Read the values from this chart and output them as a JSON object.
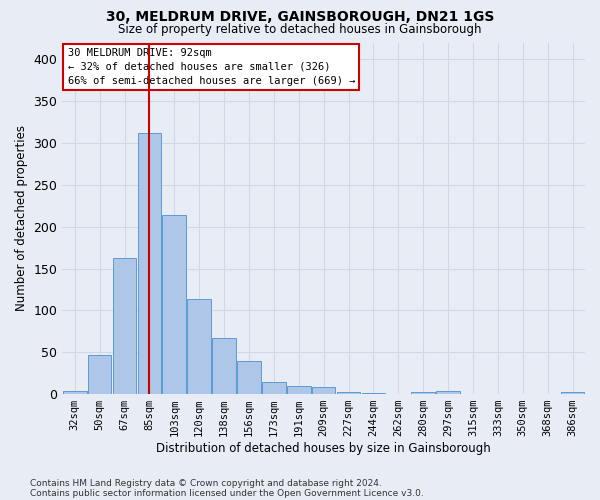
{
  "title": "30, MELDRUM DRIVE, GAINSBOROUGH, DN21 1GS",
  "subtitle": "Size of property relative to detached houses in Gainsborough",
  "xlabel": "Distribution of detached houses by size in Gainsborough",
  "ylabel": "Number of detached properties",
  "categories": [
    "32sqm",
    "50sqm",
    "67sqm",
    "85sqm",
    "103sqm",
    "120sqm",
    "138sqm",
    "156sqm",
    "173sqm",
    "191sqm",
    "209sqm",
    "227sqm",
    "244sqm",
    "262sqm",
    "280sqm",
    "297sqm",
    "315sqm",
    "333sqm",
    "350sqm",
    "368sqm",
    "386sqm"
  ],
  "values": [
    4,
    47,
    163,
    312,
    214,
    114,
    67,
    39,
    15,
    10,
    9,
    3,
    1,
    0,
    3,
    4,
    0,
    0,
    0,
    0,
    3
  ],
  "bar_color": "#aec6e8",
  "bar_edge_color": "#5b9bd5",
  "vline_x_idx": 3,
  "vline_color": "#cc0000",
  "annotation_text": "30 MELDRUM DRIVE: 92sqm\n← 32% of detached houses are smaller (326)\n66% of semi-detached houses are larger (669) →",
  "annotation_box_color": "#ffffff",
  "annotation_box_edge": "#cc0000",
  "grid_color": "#d0d8e8",
  "background_color": "#e8edf5",
  "footer1": "Contains HM Land Registry data © Crown copyright and database right 2024.",
  "footer2": "Contains public sector information licensed under the Open Government Licence v3.0.",
  "ylim": [
    0,
    420
  ],
  "yticks": [
    0,
    50,
    100,
    150,
    200,
    250,
    300,
    350,
    400
  ]
}
